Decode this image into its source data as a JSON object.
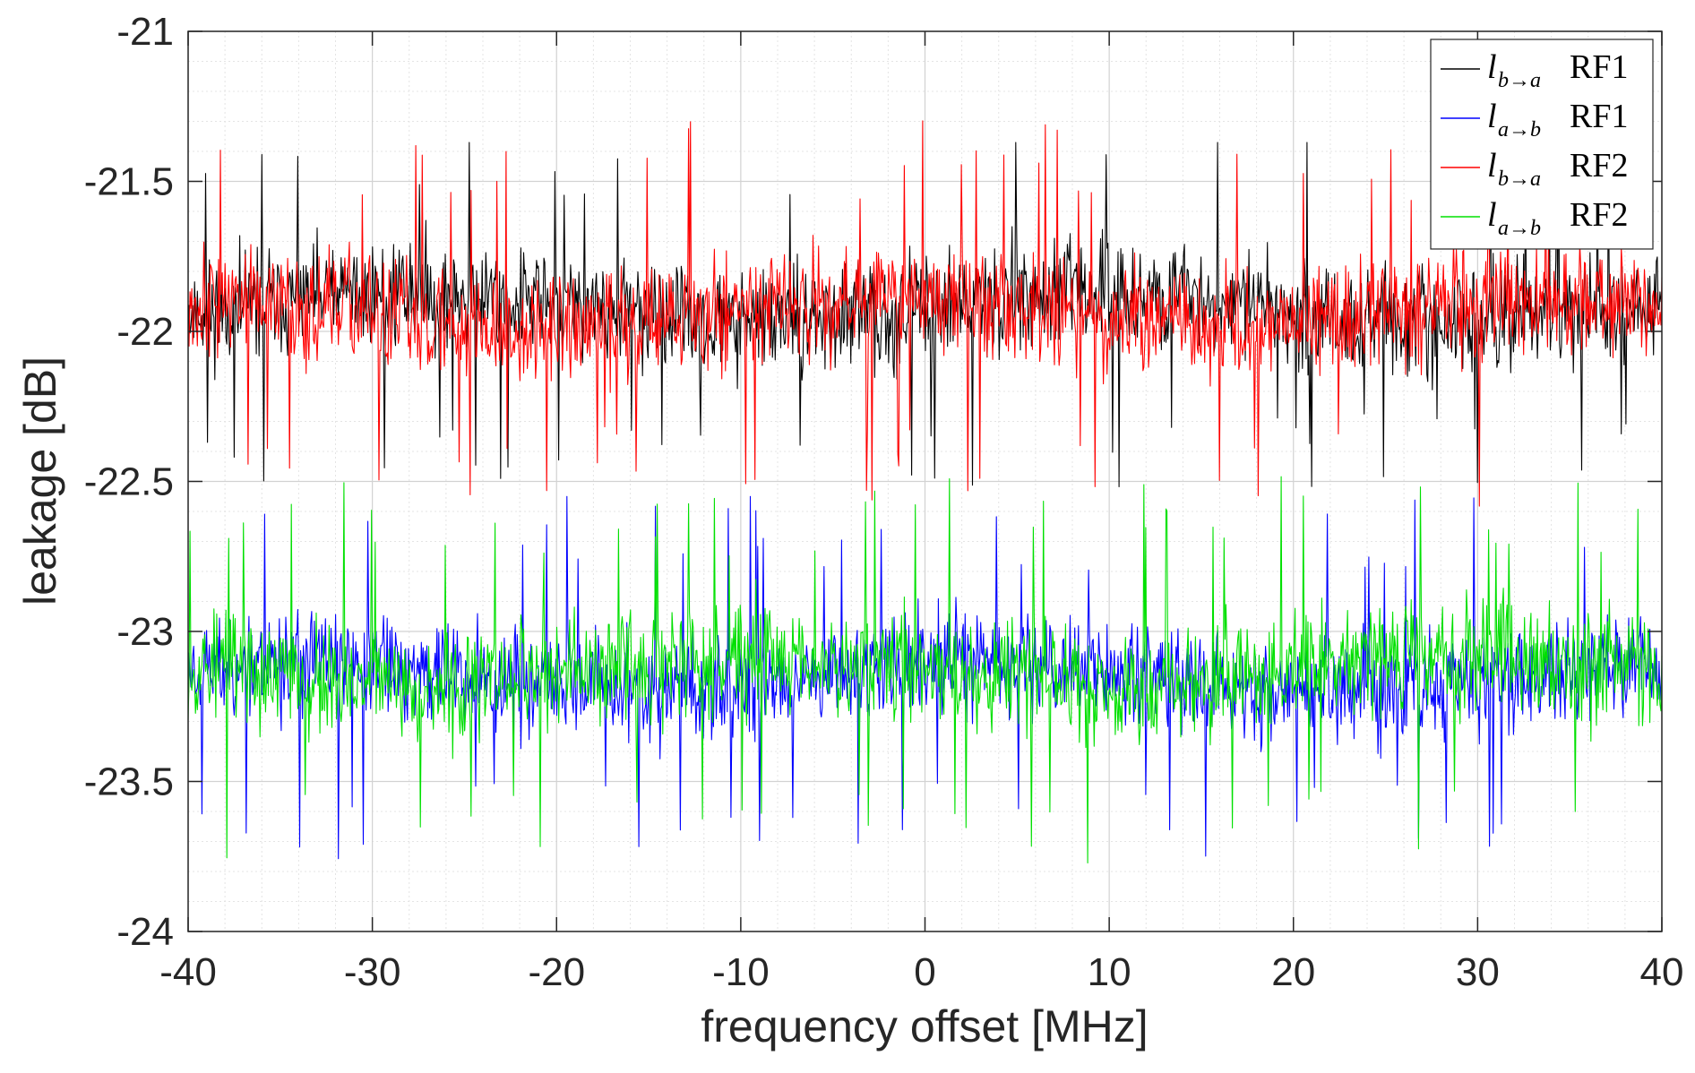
{
  "chart_data": {
    "type": "line",
    "title": "",
    "xlabel": "frequency offset [MHz]",
    "ylabel": "leakage [dB]",
    "xlim": [
      -40,
      40
    ],
    "ylim": [
      -24,
      -21
    ],
    "xticks": [
      -40,
      -30,
      -20,
      -10,
      0,
      10,
      20,
      30,
      40
    ],
    "xtick_labels": [
      "-40",
      "-30",
      "-20",
      "-10",
      "0",
      "10",
      "20",
      "30",
      "40"
    ],
    "yticks": [
      -24,
      -23.5,
      -23,
      -22.5,
      -22,
      -21.5,
      -21
    ],
    "ytick_labels": [
      "-24",
      "-23.5",
      "-23",
      "-22.5",
      "-22",
      "-21.5",
      "-21"
    ],
    "grid": "on (major and minor)",
    "legend_position": "top-right",
    "series": [
      {
        "name": "RF1",
        "legend_var": "l",
        "legend_sub": "b→a",
        "color": "#000000",
        "mean": -21.92,
        "spread": 0.16,
        "spike_max": -21.37,
        "spike_min": -22.55,
        "seed": 11
      },
      {
        "name": "RF1",
        "legend_var": "l",
        "legend_sub": "a→b",
        "color": "#0000ff",
        "mean": -23.15,
        "spread": 0.16,
        "spike_max": -22.55,
        "spike_min": -23.85,
        "seed": 23
      },
      {
        "name": "RF2",
        "legend_var": "l",
        "legend_sub": "b→a",
        "color": "#ff0000",
        "mean": -21.94,
        "spread": 0.17,
        "spike_max": -21.25,
        "spike_min": -22.65,
        "seed": 37
      },
      {
        "name": "RF2",
        "legend_var": "l",
        "legend_sub": "a→b",
        "color": "#00e000",
        "mean": -23.13,
        "spread": 0.17,
        "spike_max": -22.42,
        "spike_min": -23.82,
        "seed": 53
      }
    ]
  }
}
